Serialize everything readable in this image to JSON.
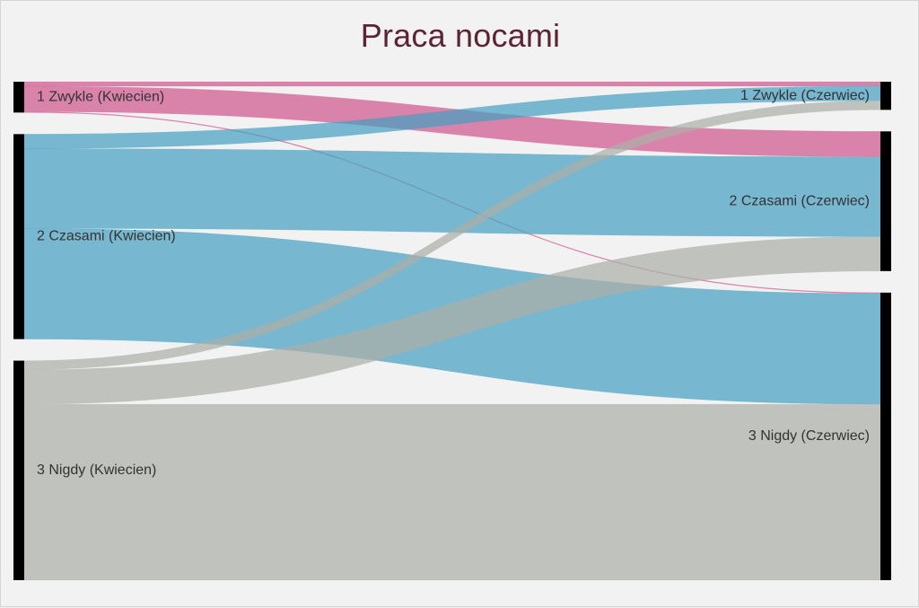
{
  "title": "Praca nocami",
  "chart_data": {
    "type": "sankey",
    "title": "Praca nocami",
    "left_nodes": [
      {
        "id": "L1",
        "label": "1 Zwykle (Kwiecien)",
        "color": "#d0588d"
      },
      {
        "id": "L2",
        "label": "2 Czasami (Kwiecien)",
        "color": "#46a0c0"
      },
      {
        "id": "L3",
        "label": "3 Nigdy (Kwiecien)",
        "color": "#acaea8"
      }
    ],
    "right_nodes": [
      {
        "id": "R1",
        "label": "1 Zwykle (Czerwiec)"
      },
      {
        "id": "R2",
        "label": "2 Czasami (Czerwiec)"
      },
      {
        "id": "R3",
        "label": "3 Nigdy (Czerwiec)"
      }
    ],
    "node_color": "#000000",
    "links": [
      {
        "source": "L1",
        "target": "R1",
        "value": 2.5
      },
      {
        "source": "L1",
        "target": "R2",
        "value": 14
      },
      {
        "source": "L1",
        "target": "R3",
        "value": 0.5
      },
      {
        "source": "L2",
        "target": "R1",
        "value": 8
      },
      {
        "source": "L2",
        "target": "R2",
        "value": 44
      },
      {
        "source": "L2",
        "target": "R3",
        "value": 61
      },
      {
        "source": "L3",
        "target": "R1",
        "value": 5
      },
      {
        "source": "L3",
        "target": "R2",
        "value": 19
      },
      {
        "source": "L3",
        "target": "R3",
        "value": 97
      }
    ]
  }
}
